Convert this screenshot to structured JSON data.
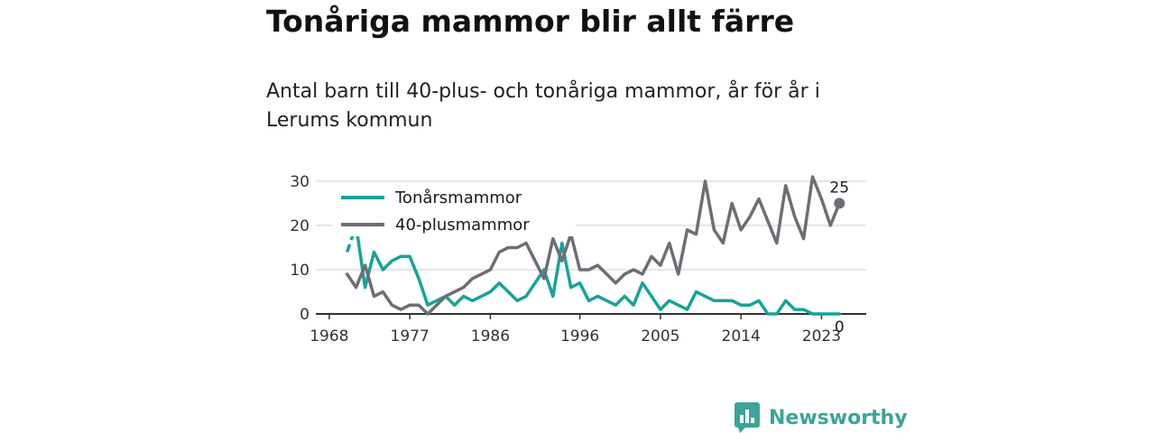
{
  "title": "Tonåriga mammor blir allt färre",
  "subtitle": "Antal barn till 40-plus- och tonåriga mammor, år för år i Lerums kommun",
  "brand": {
    "name": "Newsworthy",
    "accent": "#3aa597"
  },
  "chart_data": {
    "type": "line",
    "x": [
      1968,
      1969,
      1970,
      1971,
      1972,
      1973,
      1974,
      1975,
      1976,
      1977,
      1978,
      1979,
      1980,
      1981,
      1982,
      1983,
      1984,
      1985,
      1986,
      1987,
      1988,
      1989,
      1990,
      1991,
      1992,
      1993,
      1994,
      1995,
      1996,
      1997,
      1998,
      1999,
      2000,
      2001,
      2002,
      2003,
      2004,
      2005,
      2006,
      2007,
      2008,
      2009,
      2010,
      2011,
      2012,
      2013,
      2014,
      2015,
      2016,
      2017,
      2018,
      2019,
      2020,
      2021,
      2022,
      2023,
      2024,
      2025
    ],
    "xticks": [
      1968,
      1977,
      1986,
      1996,
      2005,
      2014,
      2023
    ],
    "yticks": [
      0,
      10,
      20,
      30
    ],
    "ylim": [
      0,
      31
    ],
    "xlim": [
      1966.5,
      2028
    ],
    "grid": true,
    "legend_position": "top-left",
    "series": [
      {
        "name": "Tonårsmammor",
        "color": "#17a398",
        "values": [
          null,
          null,
          14,
          20,
          6,
          14,
          10,
          12,
          13,
          13,
          8,
          2,
          3,
          4,
          2,
          4,
          3,
          4,
          5,
          7,
          5,
          3,
          4,
          7,
          10,
          4,
          16,
          6,
          7,
          3,
          4,
          3,
          2,
          4,
          2,
          7,
          4,
          1,
          3,
          2,
          1,
          5,
          4,
          3,
          3,
          3,
          2,
          2,
          3,
          0,
          0,
          3,
          1,
          1,
          0,
          0,
          0,
          0
        ],
        "dashed_range": [
          1970,
          1971
        ],
        "end_label": "0"
      },
      {
        "name": "40-plusmammor",
        "color": "#6e6d75",
        "values": [
          null,
          null,
          9,
          6,
          11,
          4,
          5,
          2,
          1,
          2,
          2,
          0,
          2,
          4,
          5,
          6,
          8,
          9,
          10,
          14,
          15,
          15,
          16,
          12,
          8,
          17,
          12,
          18,
          10,
          10,
          11,
          9,
          7,
          9,
          10,
          9,
          13,
          11,
          16,
          9,
          19,
          18,
          30,
          19,
          16,
          25,
          19,
          22,
          26,
          21,
          16,
          29,
          22,
          17,
          31,
          26,
          20,
          25
        ],
        "end_label": "25"
      }
    ]
  }
}
